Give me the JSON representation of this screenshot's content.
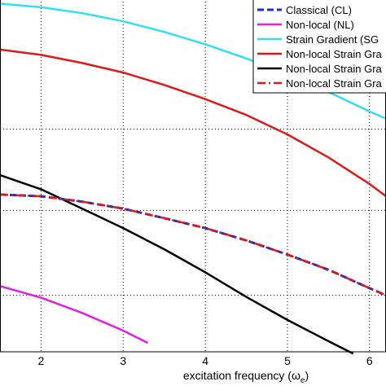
{
  "chart_data": {
    "type": "line",
    "title": "",
    "xlabel": "excitation frequency (ω",
    "xlabel_sub": "e",
    "xlabel_close": ")",
    "ylabel": "",
    "xlim": [
      1.5,
      6.2
    ],
    "ylim": [
      0,
      1
    ],
    "xticks": [
      2,
      3,
      4,
      5,
      6
    ],
    "grid": true,
    "grid_style": "dotted",
    "legend_placement": "top-right",
    "series": [
      {
        "name": "Classical (CL)",
        "color": "#1f2fbf",
        "dash": "dashed",
        "x": [
          1.5,
          2.0,
          2.5,
          3.0,
          3.5,
          4.0,
          4.5,
          5.0,
          5.5,
          6.0,
          6.2
        ],
        "y": [
          0.445,
          0.44,
          0.425,
          0.405,
          0.378,
          0.35,
          0.315,
          0.275,
          0.232,
          0.18,
          0.16
        ]
      },
      {
        "name": "Non-local (NL)",
        "color": "#e020e0",
        "dash": "solid",
        "x": [
          1.5,
          2.0,
          2.5,
          3.0,
          3.3
        ],
        "y": [
          0.186,
          0.153,
          0.11,
          0.06,
          0.025
        ]
      },
      {
        "name": "Strain Gradient (SG",
        "color": "#30e0f0",
        "dash": "solid",
        "x": [
          1.5,
          2.0,
          2.5,
          3.0,
          3.5,
          4.0,
          4.5,
          5.0,
          5.5,
          6.0,
          6.2
        ],
        "y": [
          0.985,
          0.975,
          0.958,
          0.935,
          0.905,
          0.87,
          0.83,
          0.785,
          0.735,
          0.68,
          0.66
        ]
      },
      {
        "name": "Non-local Strain Gra",
        "color": "#dd1a1a",
        "dash": "solid",
        "x": [
          1.5,
          2.0,
          2.5,
          3.0,
          3.5,
          4.0,
          4.5,
          5.0,
          5.5,
          6.0,
          6.2
        ],
        "y": [
          0.855,
          0.84,
          0.817,
          0.79,
          0.755,
          0.715,
          0.67,
          0.615,
          0.55,
          0.475,
          0.44
        ]
      },
      {
        "name": "Non-local Strain Gra",
        "color": "#000000",
        "dash": "solid",
        "x": [
          1.5,
          2.0,
          2.5,
          3.0,
          3.5,
          4.0,
          4.5,
          5.0,
          5.5,
          5.8
        ],
        "y": [
          0.5,
          0.46,
          0.405,
          0.35,
          0.29,
          0.225,
          0.155,
          0.09,
          0.03,
          -0.005
        ]
      },
      {
        "name": "Non-local Strain Gra",
        "color": "#dd1a1a",
        "dash": "dashdot",
        "x": [
          1.5,
          2.0,
          2.5,
          3.0,
          3.5,
          4.0,
          4.5,
          5.0,
          5.5,
          6.0,
          6.2
        ],
        "y": [
          0.445,
          0.44,
          0.425,
          0.405,
          0.378,
          0.35,
          0.315,
          0.275,
          0.232,
          0.18,
          0.16
        ]
      }
    ]
  }
}
